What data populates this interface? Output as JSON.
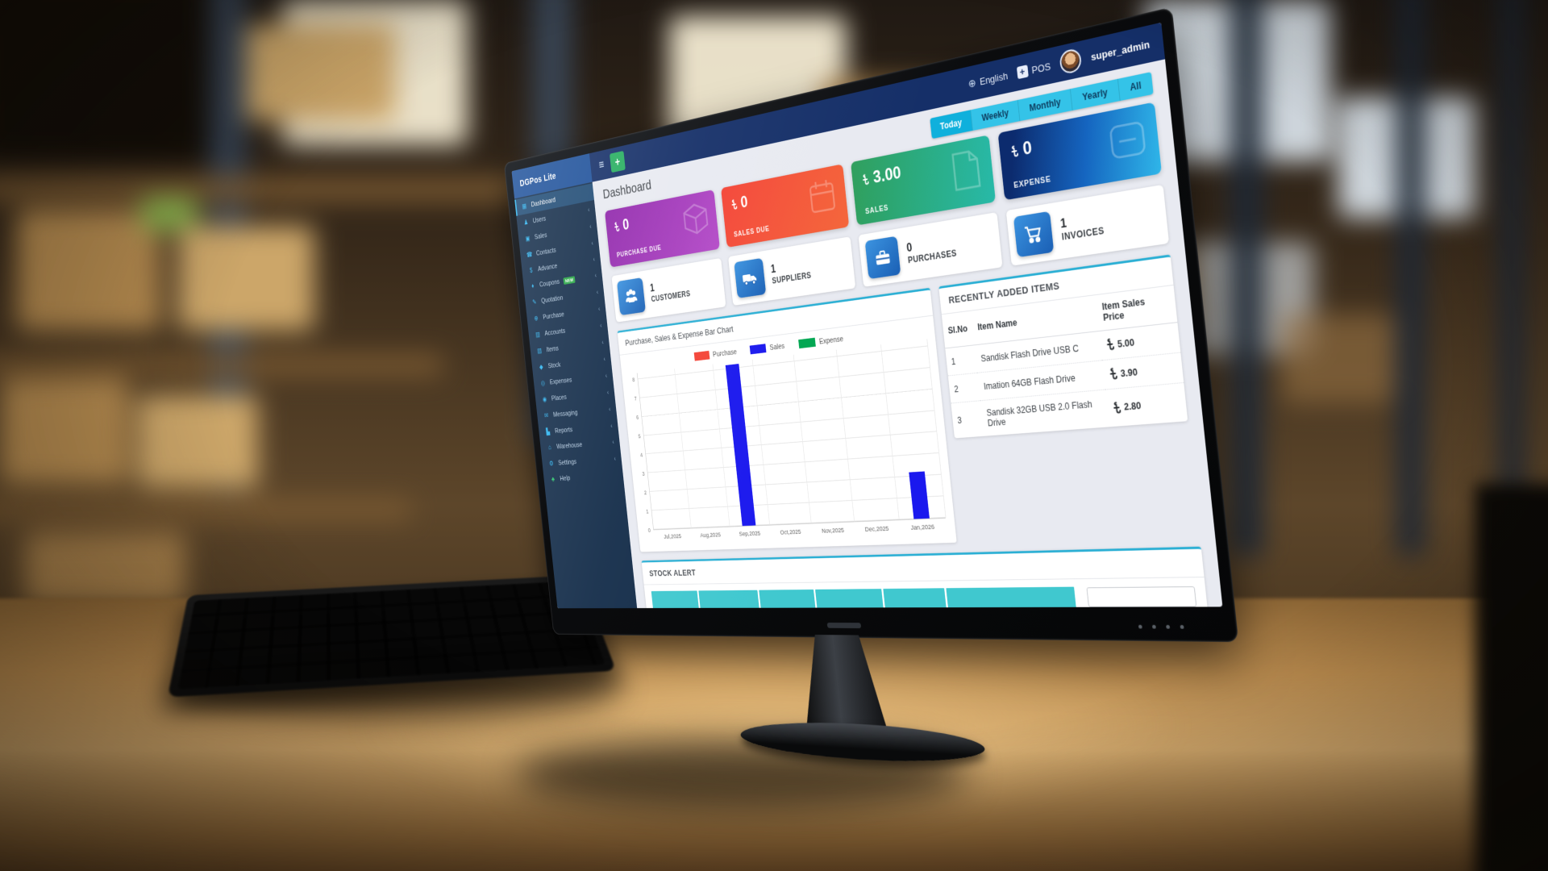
{
  "header": {
    "brand": "DGPos Lite",
    "menu_icon": "≡",
    "add_button": "+",
    "language": "English",
    "pos_label": "POS",
    "username": "super_admin"
  },
  "sidebar": {
    "items": [
      {
        "label": "Dashboard",
        "icon": "dashboard-icon",
        "active": true,
        "chevron": false
      },
      {
        "label": "Users",
        "icon": "users-icon",
        "active": false,
        "chevron": true
      },
      {
        "label": "Sales",
        "icon": "sales-icon",
        "active": false,
        "chevron": true
      },
      {
        "label": "Contacts",
        "icon": "contacts-icon",
        "active": false,
        "chevron": true
      },
      {
        "label": "Advance",
        "icon": "advance-icon",
        "active": false,
        "chevron": true
      },
      {
        "label": "Coupons",
        "icon": "coupons-icon",
        "active": false,
        "chevron": true,
        "badge": "NEW"
      },
      {
        "label": "Quotation",
        "icon": "quotation-icon",
        "active": false,
        "chevron": true
      },
      {
        "label": "Purchase",
        "icon": "purchase-icon",
        "active": false,
        "chevron": true
      },
      {
        "label": "Accounts",
        "icon": "accounts-icon",
        "active": false,
        "chevron": true
      },
      {
        "label": "Items",
        "icon": "items-icon",
        "active": false,
        "chevron": true
      },
      {
        "label": "Stock",
        "icon": "stock-icon",
        "active": false,
        "chevron": true
      },
      {
        "label": "Expenses",
        "icon": "expenses-icon",
        "active": false,
        "chevron": true
      },
      {
        "label": "Places",
        "icon": "places-icon",
        "active": false,
        "chevron": true
      },
      {
        "label": "Messaging",
        "icon": "messaging-icon",
        "active": false,
        "chevron": true
      },
      {
        "label": "Reports",
        "icon": "reports-icon",
        "active": false,
        "chevron": true
      },
      {
        "label": "Warehouse",
        "icon": "warehouse-icon",
        "active": false,
        "chevron": true
      },
      {
        "label": "Settings",
        "icon": "settings-icon",
        "active": false,
        "chevron": true
      },
      {
        "label": "Help",
        "icon": "help-icon",
        "active": false,
        "chevron": false
      }
    ]
  },
  "page": {
    "title": "Dashboard"
  },
  "filter_tabs": {
    "active": "Today",
    "tabs": [
      "Today",
      "Weekly",
      "Monthly",
      "Yearly",
      "All"
    ]
  },
  "currency": "৳",
  "summary_cards": [
    {
      "amount": "0",
      "label": "PURCHASE DUE",
      "icon": "cube-icon",
      "color": "#9c3fb4"
    },
    {
      "amount": "0",
      "label": "SALES DUE",
      "icon": "calendar-icon",
      "color": "#f44336"
    },
    {
      "amount": "3.00",
      "label": "SALES",
      "icon": "document-icon",
      "color": "#2faa80"
    },
    {
      "amount": "0",
      "label": "EXPENSE",
      "icon": "minus-card-icon",
      "color": "#14569f"
    }
  ],
  "stat_cards": [
    {
      "value": "1",
      "label": "CUSTOMERS",
      "icon": "customers-icon"
    },
    {
      "value": "1",
      "label": "SUPPLIERS",
      "icon": "truck-icon"
    },
    {
      "value": "0",
      "label": "PURCHASES",
      "icon": "briefcase-icon"
    },
    {
      "value": "1",
      "label": "INVOICES",
      "icon": "cart-icon"
    }
  ],
  "chart_panel": {
    "title": "Purchase, Sales & Expense Bar Chart"
  },
  "chart_data": {
    "type": "bar",
    "categories": [
      "Jul,2025",
      "Aug,2025",
      "Sep,2025",
      "Oct,2025",
      "Nov,2025",
      "Dec,2025",
      "Jan,2026"
    ],
    "series": [
      {
        "name": "Purchase",
        "color": "#f44336",
        "values": [
          0,
          0,
          0,
          0,
          0,
          0,
          0
        ]
      },
      {
        "name": "Sales",
        "color": "#1a18ee",
        "values": [
          0,
          0,
          8.2,
          0,
          0,
          0,
          2.2
        ]
      },
      {
        "name": "Expense",
        "color": "#00a651",
        "values": [
          0,
          0,
          0,
          0,
          0,
          0,
          0
        ]
      }
    ],
    "ylim": [
      0,
      8
    ],
    "yticks": [
      0,
      1,
      2,
      3,
      4,
      5,
      6,
      7,
      8
    ],
    "grid": true,
    "legend_position": "top"
  },
  "stock_alert": {
    "title": "STOCK ALERT",
    "header_cells": 6
  },
  "recent_items": {
    "title": "RECENTLY ADDED ITEMS",
    "columns": [
      "Sl.No",
      "Item Name",
      "Item Sales Price"
    ],
    "rows": [
      {
        "no": "1",
        "name": "Sandisk Flash Drive USB C",
        "price": "5.00"
      },
      {
        "no": "2",
        "name": "Imation 64GB Flash Drive",
        "price": "3.90"
      },
      {
        "no": "3",
        "name": "Sandisk 32GB USB 2.0 Flash Drive",
        "price": "2.80"
      }
    ]
  }
}
